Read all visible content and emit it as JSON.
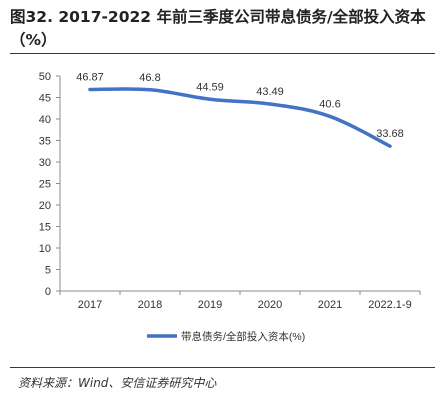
{
  "title": "图32. 2017-2022 年前三季度公司带息债务/全部投入资本（%）",
  "source": "资料来源：Wind、安信证券研究中心",
  "chart_data": {
    "type": "line",
    "categories": [
      "2017",
      "2018",
      "2019",
      "2020",
      "2021",
      "2022.1-9"
    ],
    "series": [
      {
        "name": "带息债务/全部投入资本(%)",
        "values": [
          46.87,
          46.8,
          44.59,
          43.49,
          40.6,
          33.68
        ],
        "color": "#4472C4"
      }
    ],
    "data_labels": [
      "46.87",
      "46.8",
      "44.59",
      "43.49",
      "40.6",
      "33.68"
    ],
    "ylim": [
      0,
      50
    ],
    "yticks": [
      0,
      5,
      10,
      15,
      20,
      25,
      30,
      35,
      40,
      45,
      50
    ],
    "grid": false,
    "smooth": true,
    "legend": "bottom-center"
  }
}
